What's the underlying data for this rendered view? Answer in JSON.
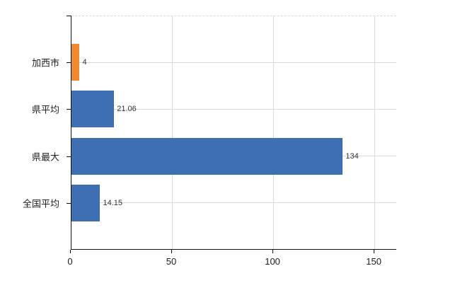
{
  "chart_data": {
    "type": "bar",
    "orientation": "horizontal",
    "title": "",
    "xlabel": "",
    "ylabel": "",
    "categories": [
      "加西市",
      "県平均",
      "県最大",
      "全国平均"
    ],
    "values": [
      4,
      21.06,
      134,
      14.15
    ],
    "value_labels": [
      "4",
      "21.06",
      "134",
      "14.15"
    ],
    "series": [
      {
        "name": "",
        "values": [
          4,
          21.06,
          134,
          14.15
        ]
      }
    ],
    "bar_colors": [
      "#ef8a30",
      "#3e6fb2",
      "#3e6fb2",
      "#3e6fb2"
    ],
    "x_ticks": [
      0,
      50,
      100,
      150
    ],
    "x_tick_labels": [
      "0",
      "50",
      "100",
      "150"
    ],
    "xlim": [
      0,
      160.8
    ],
    "grid": true,
    "legend": "none",
    "colors": {
      "highlight_bar": "#ef8a30",
      "default_bar": "#3e6fb2",
      "gridline": "#d9d9d9",
      "axis": "#111111",
      "value_label_text": "#333333",
      "category_label_text": "#222222",
      "tick_label_text": "#1a1a1a",
      "background": "#ffffff"
    }
  }
}
